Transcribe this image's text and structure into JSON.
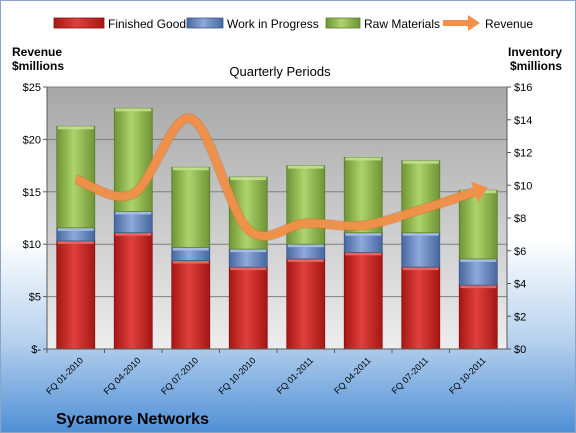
{
  "chart_data": {
    "type": "bar",
    "stacked": true,
    "company": "Sycamore Networks",
    "title": "Quarterly Periods",
    "ylabel_left": [
      "Revenue",
      "$millions"
    ],
    "ylabel_right": [
      "Inventory",
      "$millions"
    ],
    "categories": [
      "FQ 01-2010",
      "FQ 04-2010",
      "FQ 07-2010",
      "FQ 10-2010",
      "FQ 01-2011",
      "FQ 04-2011",
      "FQ 07-2011",
      "FQ 10-2011"
    ],
    "series": [
      {
        "name": "Finished Goods",
        "axis": "right",
        "color": "#c8201e",
        "values": [
          6.6,
          7.1,
          5.4,
          5.0,
          5.5,
          5.9,
          5.0,
          3.9
        ]
      },
      {
        "name": "Work in Progress",
        "axis": "right",
        "color": "#5b7ec4",
        "values": [
          0.8,
          1.3,
          0.8,
          1.1,
          0.9,
          1.2,
          2.1,
          1.6
        ]
      },
      {
        "name": "Raw Materials",
        "axis": "right",
        "color": "#8fb84a",
        "values": [
          6.2,
          6.3,
          4.9,
          4.4,
          4.8,
          4.6,
          4.4,
          4.2
        ]
      },
      {
        "name": "Revenue",
        "axis": "left",
        "type": "line",
        "color": "#f0904a",
        "values": [
          16.2,
          14.8,
          22.0,
          11.4,
          12.0,
          11.8,
          13.3,
          15.1
        ]
      }
    ],
    "y_left": {
      "min": 0,
      "max": 25,
      "ticks": [
        0,
        5,
        10,
        15,
        20,
        25
      ],
      "tick_labels": [
        "$-",
        "$5",
        "$10",
        "$15",
        "$20",
        "$25"
      ]
    },
    "y_right": {
      "min": 0,
      "max": 16,
      "ticks": [
        0,
        2,
        4,
        6,
        8,
        10,
        12,
        14,
        16
      ],
      "tick_labels": [
        "$0",
        "$2",
        "$4",
        "$6",
        "$8",
        "$10",
        "$12",
        "$14",
        "$16"
      ]
    },
    "grid": true,
    "legend_position": "top"
  }
}
